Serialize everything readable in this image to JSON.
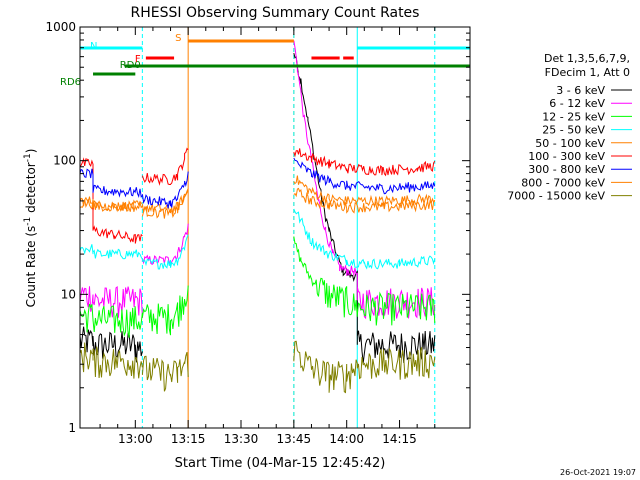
{
  "chart_data": {
    "type": "line",
    "title": "RHESSI Observing Summary Count Rates",
    "xlabel": "Start Time (04-Mar-15 12:45:42)",
    "ylabel_main": "Count Rate (s",
    "ylabel_sup1": "-1",
    "ylabel_mid": " detector",
    "ylabel_sup2": "-1",
    "ylabel_end": ")",
    "y_log": true,
    "ylim": [
      1,
      1000
    ],
    "xlim_minutes": [
      -15.7,
      95
    ],
    "x_tick_labels": [
      "13:00",
      "13:15",
      "13:30",
      "13:45",
      "14:00",
      "14:15"
    ],
    "x_tick_minutes": [
      0,
      15,
      30,
      45,
      60,
      75
    ],
    "y_tick_labels": [
      "1",
      "10",
      "100",
      "1000"
    ],
    "y_tick_values": [
      1,
      10,
      100,
      1000
    ],
    "timestamp": "26-Oct-2021 19:07",
    "legend_header": [
      "Det 1,3,5,6,7,9,",
      "FDecim 1, Att 0"
    ],
    "flags": [
      {
        "label": "RD0",
        "color": "#008000",
        "start": -3,
        "end": 95
      },
      {
        "label": "RD6",
        "color": "#008000",
        "start": -12,
        "end": 0
      },
      {
        "label": "N",
        "color": "#00ffff",
        "start": -15.7,
        "end": 2
      },
      {
        "label": "F",
        "color": "#ff0000",
        "start": 3,
        "end": 11
      },
      {
        "label": "S",
        "color": "#ff8000",
        "start": 15,
        "end": 45
      }
    ],
    "flag_extra": [
      {
        "color": "#ff0000",
        "start": 50,
        "end": 58
      },
      {
        "color": "#ff0000",
        "start": 59,
        "end": 62
      },
      {
        "color": "#00ffff",
        "start": 63,
        "end": 95
      }
    ],
    "vlines": [
      {
        "color": "#00ffff",
        "minute": -15.7,
        "style": "solid"
      },
      {
        "color": "#00ffff",
        "minute": 2,
        "style": "dashed"
      },
      {
        "color": "#ff8000",
        "minute": 15,
        "style": "solid"
      },
      {
        "color": "#ff8000",
        "minute": 45,
        "style": "dashed"
      },
      {
        "color": "#00ffff",
        "minute": 45,
        "style": "dashed"
      },
      {
        "color": "#00ffff",
        "minute": 63,
        "style": "solid"
      },
      {
        "color": "#00ffff",
        "minute": 85,
        "style": "dashed"
      }
    ],
    "series": [
      {
        "name": "3 - 6 keV",
        "color": "#000000",
        "segments": [
          [
            [
              -15.7,
              4.5
            ],
            [
              -12,
              4.5
            ],
            [
              -12,
              4.2
            ],
            [
              0,
              4.2
            ],
            [
              0,
              4.0
            ],
            [
              2,
              4.0
            ]
          ],
          [
            [
              45,
              650
            ],
            [
              47,
              400
            ],
            [
              49,
              200
            ],
            [
              51,
              100
            ],
            [
              53,
              50
            ],
            [
              55,
              30
            ],
            [
              57,
              20
            ],
            [
              59,
              15
            ],
            [
              61,
              14
            ],
            [
              63,
              14
            ],
            [
              63,
              4.2
            ],
            [
              85,
              4.2
            ]
          ]
        ]
      },
      {
        "name": "6 - 12 keV",
        "color": "#ff00ff",
        "segments": [
          [
            [
              -15.7,
              10
            ],
            [
              -12,
              10
            ],
            [
              -12,
              9
            ],
            [
              0,
              9
            ],
            [
              2,
              9
            ]
          ],
          [
            [
              2,
              18
            ],
            [
              10,
              18
            ],
            [
              12,
              20
            ],
            [
              14,
              27
            ],
            [
              15,
              32
            ]
          ],
          [
            [
              45,
              800
            ],
            [
              46,
              500
            ],
            [
              48,
              200
            ],
            [
              50,
              100
            ],
            [
              52,
              50
            ],
            [
              54,
              30
            ],
            [
              56,
              20
            ],
            [
              58,
              16
            ],
            [
              60,
              15
            ],
            [
              62,
              15
            ],
            [
              63,
              14
            ],
            [
              63,
              9
            ],
            [
              85,
              9
            ]
          ]
        ]
      },
      {
        "name": "12 - 25 keV",
        "color": "#00ff00",
        "segments": [
          [
            [
              -15.7,
              7
            ],
            [
              -12,
              7
            ],
            [
              -12,
              6.5
            ],
            [
              2,
              6.5
            ]
          ],
          [
            [
              2,
              6.8
            ],
            [
              10,
              6.8
            ],
            [
              12,
              7.5
            ],
            [
              14,
              10
            ],
            [
              15,
              12
            ]
          ],
          [
            [
              45,
              25
            ],
            [
              47,
              18
            ],
            [
              50,
              13
            ],
            [
              55,
              10
            ],
            [
              60,
              9
            ],
            [
              63,
              8
            ],
            [
              85,
              8
            ]
          ]
        ]
      },
      {
        "name": "25 - 50 keV",
        "color": "#00ffff",
        "segments": [
          [
            [
              -15.7,
              22
            ],
            [
              -12,
              22
            ],
            [
              -12,
              20
            ],
            [
              2,
              20
            ]
          ],
          [
            [
              2,
              17
            ],
            [
              10,
              17
            ],
            [
              12,
              18
            ],
            [
              14,
              23
            ],
            [
              15,
              28
            ]
          ],
          [
            [
              45,
              45
            ],
            [
              50,
              25
            ],
            [
              55,
              20
            ],
            [
              60,
              18
            ],
            [
              65,
              17
            ],
            [
              75,
              17
            ],
            [
              85,
              18
            ]
          ]
        ]
      },
      {
        "name": "50 - 100 keV",
        "color": "#ff8000",
        "segments": [
          [
            [
              -15.7,
              50
            ],
            [
              -12,
              50
            ],
            [
              -12,
              46
            ],
            [
              2,
              46
            ]
          ],
          [
            [
              2,
              45
            ],
            [
              10,
              43
            ],
            [
              12,
              45
            ],
            [
              14,
              55
            ],
            [
              15,
              62
            ]
          ],
          [
            [
              45,
              75
            ],
            [
              50,
              58
            ],
            [
              55,
              52
            ],
            [
              60,
              50
            ],
            [
              70,
              50
            ],
            [
              85,
              52
            ]
          ]
        ]
      },
      {
        "name": "100 - 300 keV",
        "color": "#ff0000",
        "segments": [
          [
            [
              -15.7,
              95
            ],
            [
              -12,
              95
            ],
            [
              -12,
              30
            ],
            [
              -6,
              28
            ],
            [
              0,
              26
            ],
            [
              2,
              26
            ]
          ],
          [
            [
              2,
              75
            ],
            [
              10,
              72
            ],
            [
              12,
              78
            ],
            [
              14,
              105
            ],
            [
              15,
              125
            ]
          ],
          [
            [
              45,
              120
            ],
            [
              50,
              105
            ],
            [
              55,
              95
            ],
            [
              60,
              88
            ],
            [
              70,
              85
            ],
            [
              80,
              88
            ],
            [
              85,
              92
            ]
          ]
        ]
      },
      {
        "name": "300 - 800 keV",
        "color": "#0000ff",
        "segments": [
          [
            [
              -15.7,
              80
            ],
            [
              -12,
              80
            ],
            [
              -12,
              60
            ],
            [
              2,
              58
            ]
          ],
          [
            [
              2,
              52
            ],
            [
              10,
              48
            ],
            [
              12,
              52
            ],
            [
              14,
              68
            ],
            [
              15,
              80
            ]
          ],
          [
            [
              45,
              100
            ],
            [
              50,
              80
            ],
            [
              55,
              70
            ],
            [
              60,
              65
            ],
            [
              70,
              62
            ],
            [
              85,
              65
            ]
          ]
        ]
      },
      {
        "name": "800 - 7000 keV",
        "color": "#ff8000",
        "segments": [
          [
            [
              -15.7,
              48
            ],
            [
              -12,
              48
            ],
            [
              -12,
              46
            ],
            [
              2,
              45
            ]
          ],
          [
            [
              2,
              42
            ],
            [
              10,
              40
            ],
            [
              12,
              43
            ],
            [
              14,
              52
            ],
            [
              15,
              58
            ]
          ],
          [
            [
              45,
              60
            ],
            [
              50,
              50
            ],
            [
              55,
              47
            ],
            [
              60,
              45
            ],
            [
              70,
              45
            ],
            [
              85,
              47
            ]
          ]
        ]
      },
      {
        "name": "7000 - 15000 keV",
        "color": "#808000",
        "segments": [
          [
            [
              -15.7,
              3.5
            ],
            [
              -12,
              3.5
            ],
            [
              -12,
              3.2
            ],
            [
              2,
              3.2
            ]
          ],
          [
            [
              2,
              2.8
            ],
            [
              10,
              2.5
            ],
            [
              12,
              2.6
            ],
            [
              14,
              3.0
            ],
            [
              15,
              3.2
            ]
          ],
          [
            [
              45,
              4.0
            ],
            [
              50,
              2.8
            ],
            [
              55,
              2.5
            ],
            [
              60,
              2.5
            ],
            [
              63,
              3.0
            ],
            [
              85,
              3.2
            ]
          ]
        ]
      }
    ]
  }
}
